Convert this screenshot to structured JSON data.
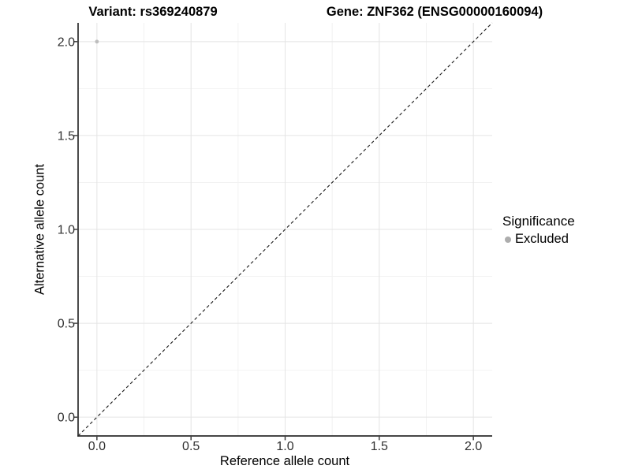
{
  "chart_data": {
    "type": "scatter",
    "title_left": "Variant: rs369240879",
    "title_right": "Gene: ZNF362 (ENSG00000160094)",
    "xlabel": "Reference allele count",
    "ylabel": "Alternative allele count",
    "xlim": [
      -0.1,
      2.1
    ],
    "ylim": [
      -0.1,
      2.1
    ],
    "x_ticks": [
      0.0,
      0.5,
      1.0,
      1.5,
      2.0
    ],
    "y_ticks": [
      0.0,
      0.5,
      1.0,
      1.5,
      2.0
    ],
    "x_minor_ticks": [
      0.25,
      0.75,
      1.25,
      1.75
    ],
    "y_minor_ticks": [
      0.25,
      0.75,
      1.25,
      1.75
    ],
    "tick_decimals": 1,
    "grid": true,
    "series": [
      {
        "name": "Excluded",
        "color": "#bdbdbd",
        "points": [
          {
            "x": 0.0,
            "y": 2.0
          }
        ]
      }
    ],
    "reference_line": {
      "type": "identity",
      "slope": 1,
      "intercept": 0,
      "style": "dashed",
      "color": "#1a1a1a"
    },
    "legend": {
      "title": "Significance",
      "position": "right",
      "entries": [
        {
          "label": "Excluded",
          "color": "#adadad"
        }
      ]
    }
  },
  "colors": {
    "background": "#ffffff",
    "grid_major": "#e4e4e4",
    "grid_minor": "#f2f2f2",
    "axis_line": "#2b2b2b",
    "tick_mark": "#333333",
    "tick_text": "#303030",
    "title_text": "#000000"
  }
}
